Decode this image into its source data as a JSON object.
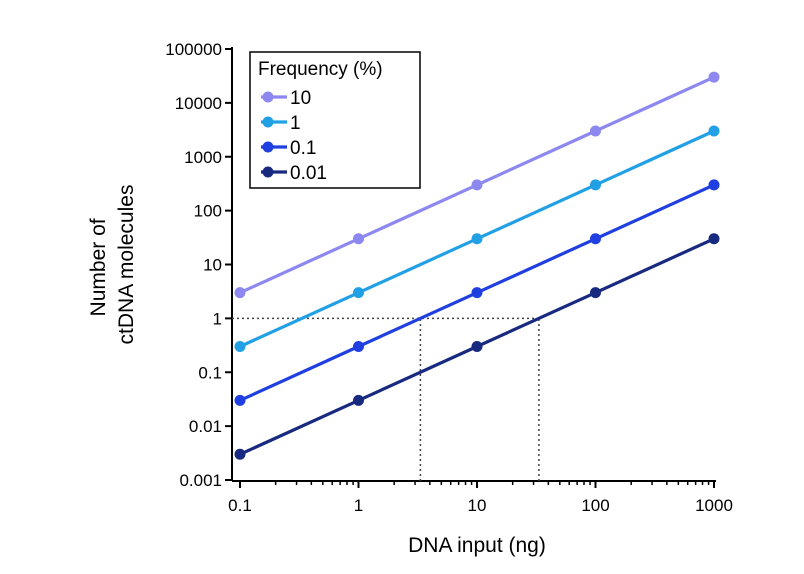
{
  "chart_data": {
    "type": "line",
    "title": "",
    "xlabel": "DNA input (ng)",
    "ylabel_lines": [
      "Number of",
      "ctDNA molecules"
    ],
    "x_scale": "log",
    "y_scale": "log",
    "xlim": [
      0.1,
      1000
    ],
    "ylim": [
      0.001,
      100000
    ],
    "x_ticks": [
      "0.1",
      "1",
      "10",
      "100",
      "1000"
    ],
    "y_ticks": [
      "0.001",
      "0.01",
      "0.1",
      "1",
      "10",
      "100",
      "1000",
      "10000",
      "100000"
    ],
    "x": [
      0.1,
      1,
      10,
      100,
      1000
    ],
    "legend": {
      "title": "Frequency (%)",
      "placement": "top-left"
    },
    "series": [
      {
        "name": "10",
        "color": "#8c88f0",
        "values": [
          3,
          30,
          300,
          3000,
          30000
        ]
      },
      {
        "name": "1",
        "color": "#21a0e6",
        "values": [
          0.3,
          3,
          30,
          300,
          3000
        ]
      },
      {
        "name": "0.1",
        "color": "#1f3fe0",
        "values": [
          0.03,
          0.3,
          3,
          30,
          300
        ]
      },
      {
        "name": "0.01",
        "color": "#172a80",
        "values": [
          0.003,
          0.03,
          0.3,
          3,
          30
        ]
      }
    ],
    "reference_lines": [
      {
        "type": "horizontal",
        "y": 1,
        "from_x": 0.1,
        "to_x": 33.3,
        "style": "dotted"
      },
      {
        "type": "vertical",
        "x": 3.33,
        "from_y": 0.001,
        "to_y": 1,
        "style": "dotted"
      },
      {
        "type": "vertical",
        "x": 33.3,
        "from_y": 0.001,
        "to_y": 1,
        "style": "dotted"
      }
    ],
    "grid": false
  }
}
